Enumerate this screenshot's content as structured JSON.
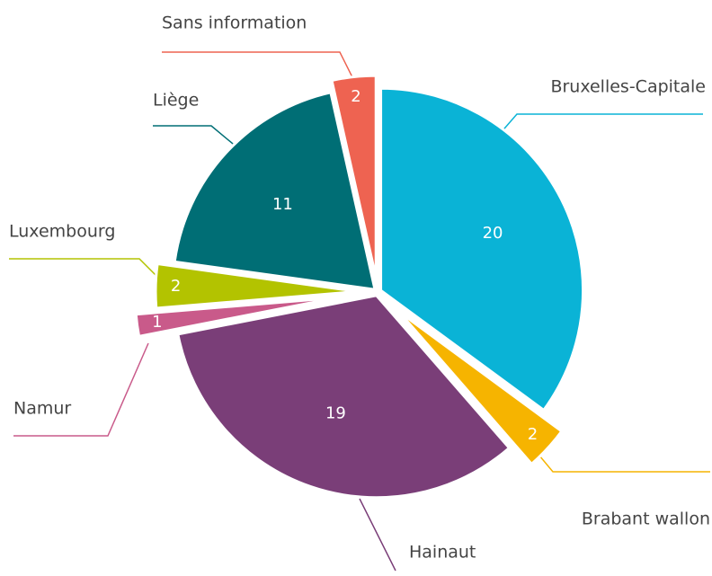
{
  "chart_data": {
    "type": "pie",
    "categories": [
      "Bruxelles-Capitale",
      "Brabant wallon",
      "Hainaut",
      "Namur",
      "Luxembourg",
      "Liège",
      "Sans information"
    ],
    "values": [
      20,
      2,
      19,
      1,
      2,
      11,
      2
    ],
    "colors": [
      "#0ab3d6",
      "#f6b400",
      "#7a3e78",
      "#c95a8a",
      "#b3c300",
      "#006e75",
      "#ee6351"
    ]
  }
}
